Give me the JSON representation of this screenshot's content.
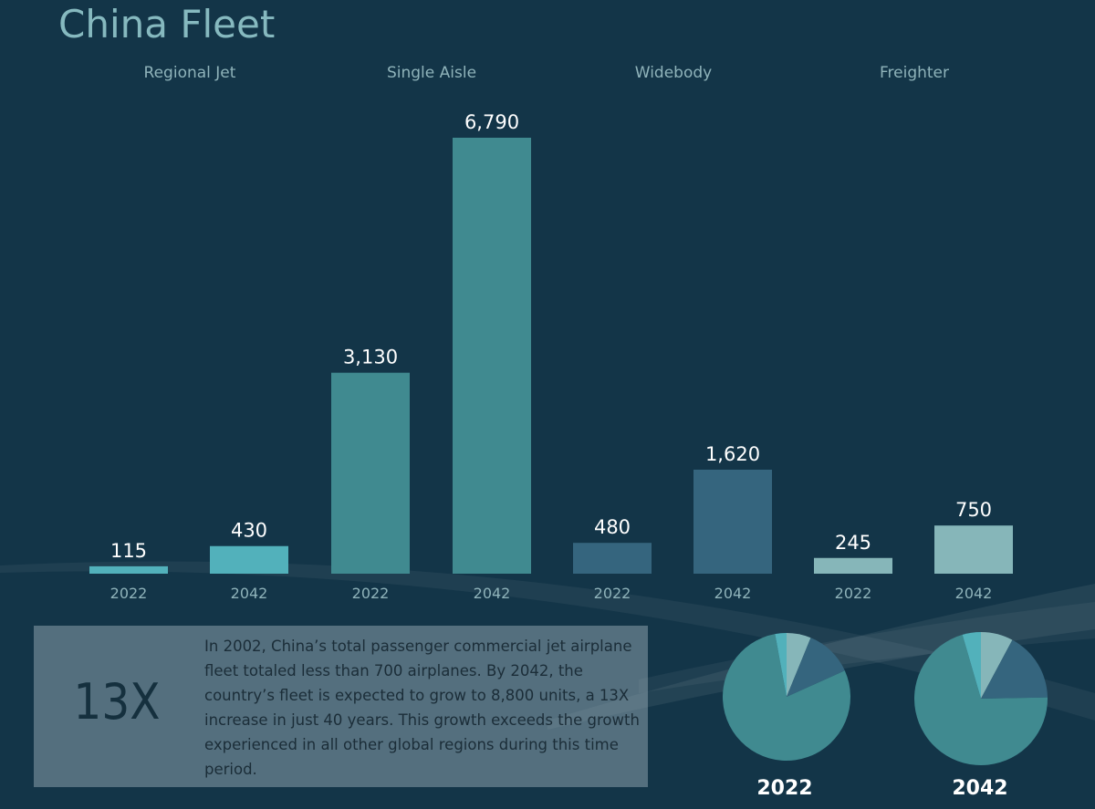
{
  "title": "China Fleet",
  "colors": {
    "background": "#133548",
    "Regional Jet": "#52b1bb",
    "Single Aisle": "#408a90",
    "Widebody": "#35657e",
    "Freighter": "#86b6b9"
  },
  "chart_data": [
    {
      "type": "bar",
      "title": "China Fleet",
      "groups": [
        "Regional Jet",
        "Single Aisle",
        "Widebody",
        "Freighter"
      ],
      "categories": [
        "2022",
        "2042"
      ],
      "series": [
        {
          "name": "Regional Jet",
          "values": [
            115,
            430
          ],
          "labels": [
            "115",
            "430"
          ]
        },
        {
          "name": "Single Aisle",
          "values": [
            3130,
            6790
          ],
          "labels": [
            "3,130",
            "6,790"
          ]
        },
        {
          "name": "Widebody",
          "values": [
            480,
            1620
          ],
          "labels": [
            "480",
            "1,620"
          ]
        },
        {
          "name": "Freighter",
          "values": [
            245,
            750
          ],
          "labels": [
            "245",
            "750"
          ]
        }
      ],
      "xlabel": "",
      "ylabel": "",
      "ylim": [
        0,
        6790
      ],
      "grid": false
    },
    {
      "type": "pie",
      "title": "2022",
      "slices": [
        {
          "name": "Freighter",
          "value": 245
        },
        {
          "name": "Widebody",
          "value": 480
        },
        {
          "name": "Single Aisle",
          "value": 3130
        },
        {
          "name": "Regional Jet",
          "value": 115
        }
      ]
    },
    {
      "type": "pie",
      "title": "2042",
      "slices": [
        {
          "name": "Freighter",
          "value": 750
        },
        {
          "name": "Widebody",
          "value": 1620
        },
        {
          "name": "Single Aisle",
          "value": 6790
        },
        {
          "name": "Regional Jet",
          "value": 430
        }
      ]
    }
  ],
  "callout": {
    "stat": "13X",
    "text": "In 2002, China’s total passenger commercial jet airplane fleet totaled less than 700 airplanes. By 2042, the country’s fleet is expected to grow to 8,800 units, a 13X increase in just 40 years. This growth exceeds the growth experienced in all other global regions during this time period."
  }
}
